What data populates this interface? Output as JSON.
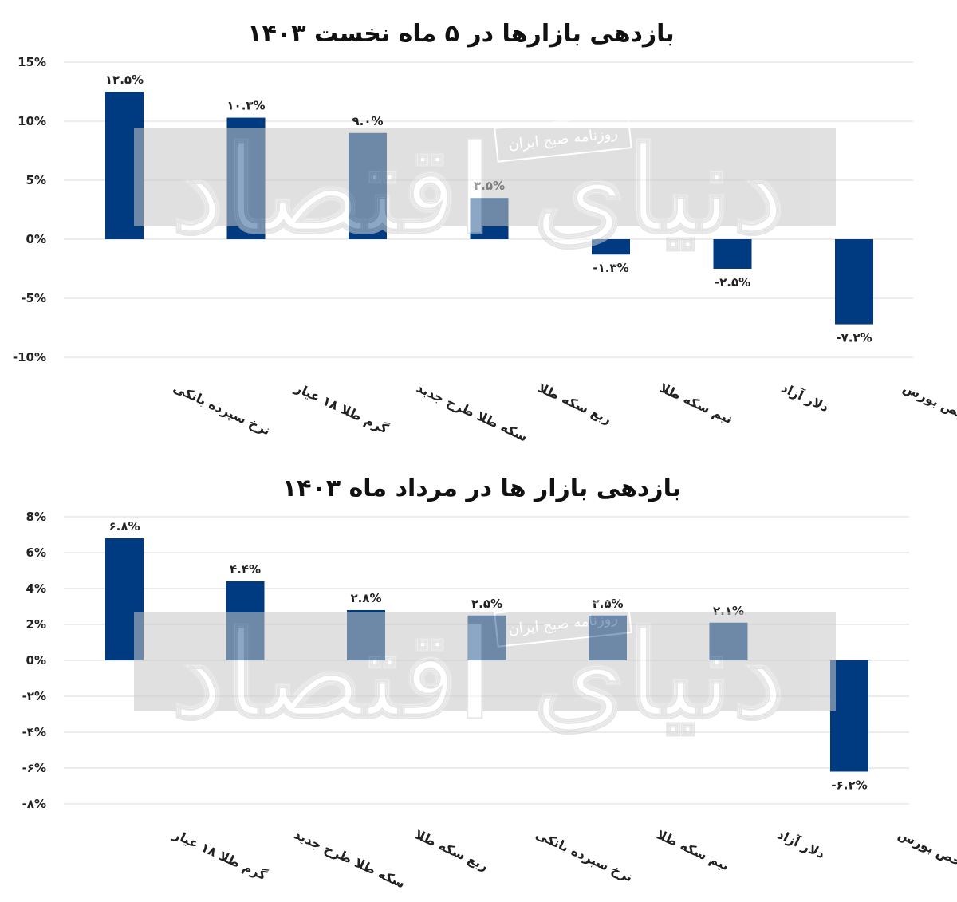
{
  "watermark": {
    "brand": "دنیای اقتصاد",
    "tagline": "روزنامه صبح ایران"
  },
  "colors": {
    "bar": "#003a80",
    "grid": "#d9d9d9",
    "watermark_band": "#d6d6d6"
  },
  "chart_data": [
    {
      "type": "bar",
      "title": "بازدهی بازارها در ۵ ماه نخست ۱۴۰۳",
      "xlabel": "",
      "ylabel": "",
      "ylim": [
        -10,
        15
      ],
      "yticks": [
        15,
        10,
        5,
        0,
        -5,
        -10
      ],
      "ytick_labels": [
        "15%",
        "10%",
        "5%",
        "0%",
        "-5%",
        "-10%"
      ],
      "grid": true,
      "categories": [
        "نرخ سپرده بانکی",
        "گرم طلا ۱۸ عیار",
        "سکه طلا طرح جدید",
        "ربع سکه طلا",
        "نیم سکه طلا",
        "دلار آزاد",
        "شاخص بورس"
      ],
      "values": [
        12.5,
        10.3,
        9.0,
        3.5,
        -1.3,
        -2.5,
        -7.2
      ],
      "value_labels": [
        "۱۲.۵%",
        "۱۰.۳%",
        "۹.۰%",
        "۳.۵%",
        "-۱.۳%",
        "-۲.۵%",
        "-۷.۲%"
      ]
    },
    {
      "type": "bar",
      "title": "بازدهی بازار ها در مرداد ماه ۱۴۰۳",
      "xlabel": "",
      "ylabel": "",
      "ylim": [
        -8,
        8
      ],
      "yticks": [
        8,
        6,
        4,
        2,
        0,
        -2,
        -4,
        -6,
        -8
      ],
      "ytick_labels": [
        "8%",
        "6%",
        "4%",
        "2%",
        "0%",
        "-۲%",
        "-۴%",
        "-۶%",
        "-۸%"
      ],
      "grid": true,
      "categories": [
        "گرم طلا ۱۸ عیار",
        "سکه طلا طرح جدید",
        "ربع سکه طلا",
        "نرخ سپرده بانکی",
        "نیم سکه طلا",
        "دلار آزاد",
        "شاخص بورس"
      ],
      "values": [
        6.8,
        4.4,
        2.8,
        2.5,
        2.5,
        2.1,
        -6.2
      ],
      "value_labels": [
        "۶.۸%",
        "۴.۴%",
        "۲.۸%",
        "۲.۵%",
        "۲.۵%",
        "۲.۱%",
        "-۶.۲%"
      ]
    }
  ]
}
